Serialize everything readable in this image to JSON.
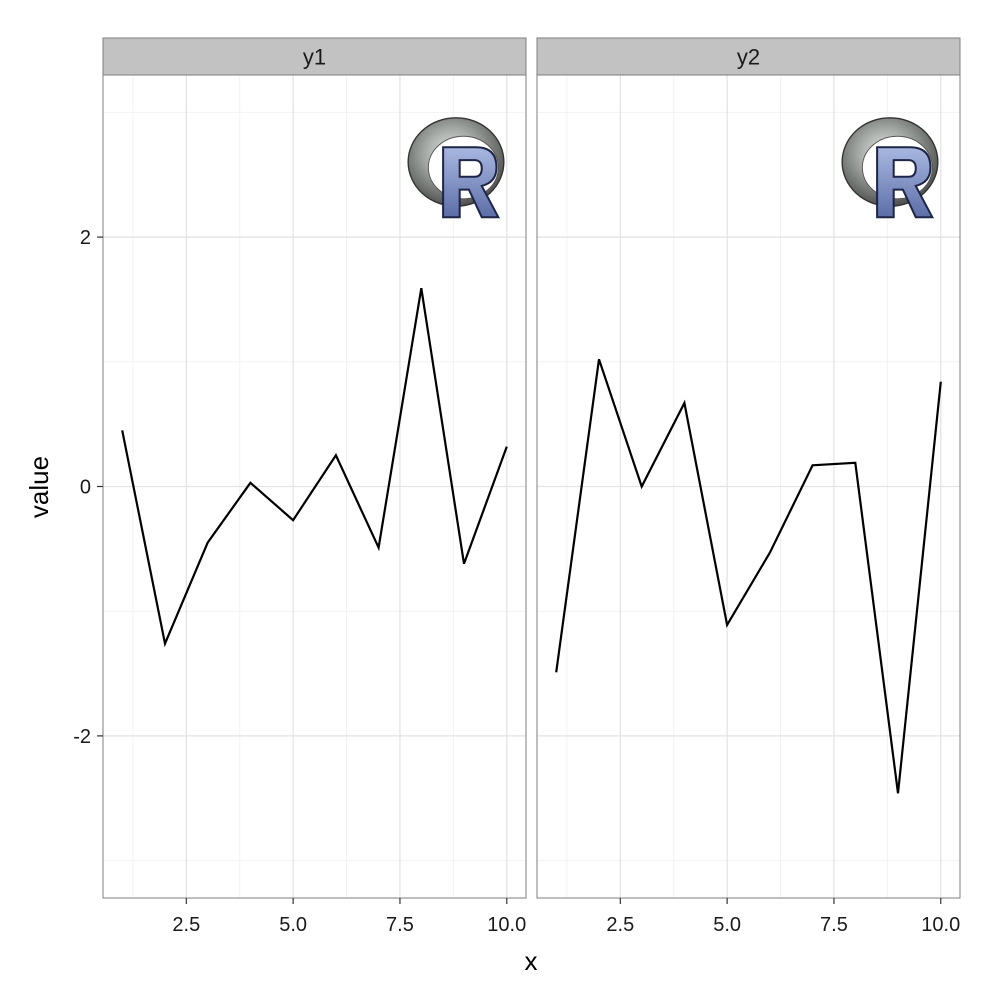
{
  "chart_data": {
    "type": "line",
    "xlabel": "x",
    "ylabel": "value",
    "xlim": [
      0.55,
      10.45
    ],
    "ylim": [
      -3.3,
      3.3
    ],
    "x_ticks": [
      2.5,
      5.0,
      7.5,
      10.0
    ],
    "x_tick_labels": [
      "2.5",
      "5.0",
      "7.5",
      "10.0"
    ],
    "y_ticks": [
      -2,
      0,
      2
    ],
    "y_tick_labels": [
      "-2",
      "0",
      "2"
    ],
    "grid": true,
    "legend": "none",
    "x": [
      1,
      2,
      3,
      4,
      5,
      6,
      7,
      8,
      9,
      10
    ],
    "panels": [
      {
        "strip_label": "y1",
        "values": [
          0.45,
          -1.26,
          -0.45,
          0.03,
          -0.27,
          0.25,
          -0.49,
          1.59,
          -0.62,
          0.32
        ]
      },
      {
        "strip_label": "y2",
        "values": [
          -1.49,
          1.02,
          0.0,
          0.67,
          -1.11,
          -0.53,
          0.17,
          0.19,
          -2.46,
          0.84
        ]
      }
    ],
    "line_color": "#000000",
    "panel_border_color": "#7f7f7f",
    "strip_fill_color": "#c2c2c2",
    "grid_major_color": "#e2e2e2",
    "grid_minor_color": "#f2f2f2",
    "annotation_image": "R-logo"
  }
}
